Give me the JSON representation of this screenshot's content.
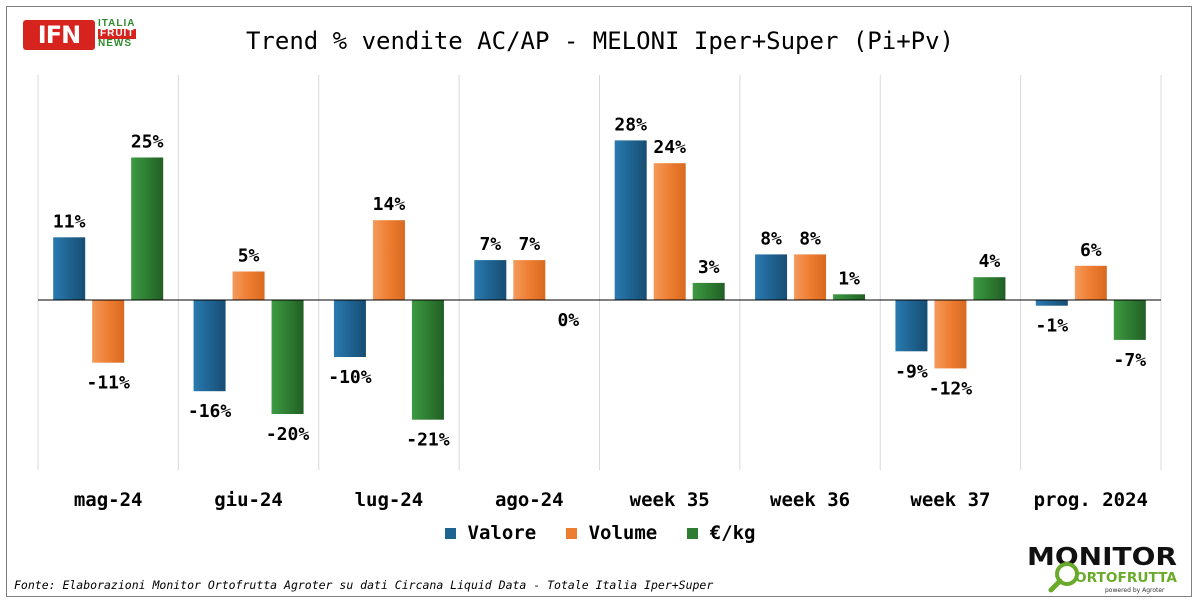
{
  "header": {
    "logo_main": "IFN",
    "logo_lines": [
      "ITALIA",
      "FRUIT",
      "NEWS"
    ],
    "title": "Trend % vendite AC/AP - MELONI Iper+Super (Pi+Pv)"
  },
  "chart_data": {
    "type": "bar",
    "title": "Trend % vendite AC/AP - MELONI Iper+Super (Pi+Pv)",
    "categories": [
      "mag-24",
      "giu-24",
      "lug-24",
      "ago-24",
      "week 35",
      "week 36",
      "week 37",
      "prog. 2024"
    ],
    "series": [
      {
        "name": "Valore",
        "color": "#1f6391",
        "values": [
          11,
          -16,
          -10,
          7,
          28,
          8,
          -9,
          -1
        ]
      },
      {
        "name": "Volume",
        "color": "#ed7d31",
        "values": [
          -11,
          5,
          14,
          7,
          24,
          8,
          -12,
          6
        ]
      },
      {
        "name": "€/kg",
        "color": "#2e7d32",
        "values": [
          25,
          -20,
          -21,
          0,
          3,
          1,
          4,
          -7
        ]
      }
    ],
    "data_labels": [
      [
        "11%",
        "-16%",
        "-10%",
        "7%",
        "28%",
        "8%",
        "-9%",
        "-1%"
      ],
      [
        "-11%",
        "5%",
        "14%",
        "7%",
        "24%",
        "8%",
        "-12%",
        "6%"
      ],
      [
        "25%",
        "-20%",
        "-21%",
        "0%",
        "3%",
        "1%",
        "4%",
        "-7%"
      ]
    ],
    "xlabel": "",
    "ylabel": "",
    "ylim": [
      -30,
      33
    ],
    "grid": false,
    "legend": "bottom"
  },
  "footer": {
    "source": "Fonte: Elaborazioni Monitor Ortofrutta Agroter su dati Circana Liquid Data - Totale Italia Iper+Super",
    "brand_top": "MONITOR",
    "brand_bottom": "ORTOFRUTTA",
    "brand_powered": "powered by Agroter"
  }
}
